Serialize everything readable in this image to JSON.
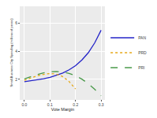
{
  "chart_data": {
    "type": "line",
    "x_label": "Vote Margin",
    "y_label": "Small-Business City Spending (millions of pesos)",
    "x": [
      0,
      0.025,
      0.05,
      0.075,
      0.1,
      0.125,
      0.15,
      0.175,
      0.2,
      0.225,
      0.25,
      0.275,
      0.3
    ],
    "series": [
      {
        "name": "PAN",
        "color": "#2323c8",
        "line_style": "solid",
        "values": [
          1.84,
          1.9,
          1.97,
          2.05,
          2.15,
          2.28,
          2.45,
          2.68,
          2.98,
          3.38,
          3.9,
          4.6,
          5.5
        ]
      },
      {
        "name": "PRD",
        "color": "#e6a817",
        "line_style": "dot",
        "values": [
          1.94,
          2.12,
          2.26,
          2.36,
          2.42,
          2.38,
          2.2,
          1.85,
          1.32,
          null,
          null,
          null,
          null
        ]
      },
      {
        "name": "PRI",
        "color": "#4a9a4a",
        "line_style": "dash",
        "values": [
          2.03,
          2.2,
          2.35,
          2.47,
          2.54,
          2.56,
          2.53,
          2.43,
          2.27,
          2.02,
          1.7,
          1.3,
          0.84
        ]
      }
    ],
    "xlim": [
      -0.015,
      0.315
    ],
    "xticks": [
      {
        "value": 0,
        "label": "0.0"
      },
      {
        "value": 0.1,
        "label": "0.1"
      },
      {
        "value": 0.2,
        "label": "0.2"
      },
      {
        "value": 0.3,
        "label": "0.3"
      }
    ],
    "ylim": [
      0.6,
      7.2
    ],
    "yticks": [
      2,
      4,
      6
    ],
    "grid": true,
    "legend": "right"
  }
}
